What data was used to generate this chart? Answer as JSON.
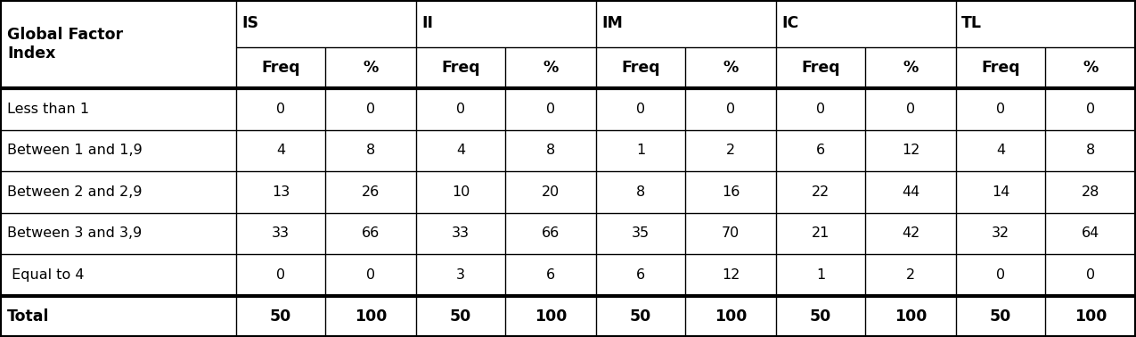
{
  "col_groups": [
    "IS",
    "II",
    "IM",
    "IC",
    "TL"
  ],
  "rows": [
    [
      "Less than 1",
      "0",
      "0",
      "0",
      "0",
      "0",
      "0",
      "0",
      "0",
      "0",
      "0"
    ],
    [
      "Between 1 and 1,9",
      "4",
      "8",
      "4",
      "8",
      "1",
      "2",
      "6",
      "12",
      "4",
      "8"
    ],
    [
      "Between 2 and 2,9",
      "13",
      "26",
      "10",
      "20",
      "8",
      "16",
      "22",
      "44",
      "14",
      "28"
    ],
    [
      "Between 3 and 3,9",
      "33",
      "66",
      "33",
      "66",
      "35",
      "70",
      "21",
      "42",
      "32",
      "64"
    ],
    [
      " Equal to 4",
      "0",
      "0",
      "3",
      "6",
      "6",
      "12",
      "1",
      "2",
      "0",
      "0"
    ]
  ],
  "total_row": [
    "Total",
    "50",
    "100",
    "50",
    "100",
    "50",
    "100",
    "50",
    "100",
    "50",
    "100"
  ],
  "background_color": "#ffffff",
  "line_color": "#000000",
  "text_color": "#000000",
  "fontsize": 11.5,
  "header_fontsize": 12.5,
  "bold_data_fontsize": 12.5
}
